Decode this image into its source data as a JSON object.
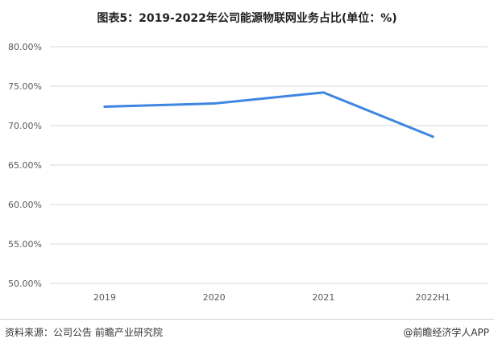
{
  "title": "图表5：2019-2022年公司能源物联网业务占比(单位：%)",
  "source": "资料来源：公司公告 前瞻产业研究院",
  "credit": "@前瞻经济学人APP",
  "colors": {
    "line": "#3e86e0",
    "grid": "#d9d9d9"
  },
  "chart_data": {
    "type": "line",
    "categories": [
      "2019",
      "2020",
      "2021",
      "2022H1"
    ],
    "series": [
      {
        "values": [
          72.4,
          72.8,
          74.2,
          68.6
        ]
      }
    ],
    "yticks": [
      "80.00%",
      "75.00%",
      "70.00%",
      "65.00%",
      "60.00%",
      "55.00%",
      "50.00%"
    ],
    "ylim": [
      50,
      80
    ],
    "grid": true,
    "legend": "none"
  }
}
